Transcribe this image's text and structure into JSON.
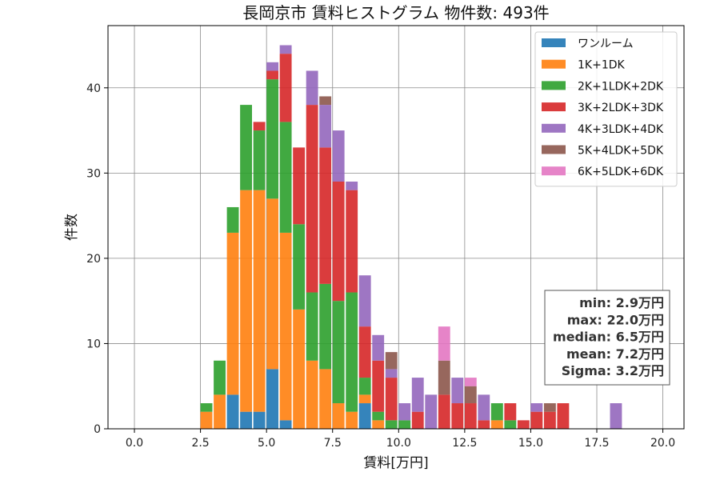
{
  "chart_data": {
    "type": "bar",
    "stacked": true,
    "title": "長岡京市 賃料ヒストグラム  物件数: 493件",
    "xlabel": "賃料[万円]",
    "ylabel": "件数",
    "xlim": [
      -1.0,
      20.8
    ],
    "ylim": [
      0,
      47.3
    ],
    "xticks": [
      0.0,
      2.5,
      5.0,
      7.5,
      10.0,
      12.5,
      15.0,
      17.5,
      20.0
    ],
    "xtick_labels": [
      "0.0",
      "2.5",
      "5.0",
      "7.5",
      "10.0",
      "12.5",
      "15.0",
      "17.5",
      "20.0"
    ],
    "yticks": [
      0,
      10,
      20,
      30,
      40
    ],
    "ytick_labels": [
      "0",
      "10",
      "20",
      "30",
      "40"
    ],
    "grid": true,
    "legend_position": "top-right",
    "bins": [
      2.5,
      3.0,
      3.5,
      4.0,
      4.5,
      5.0,
      5.5,
      6.0,
      6.5,
      7.0,
      7.5,
      8.0,
      8.5,
      9.0,
      9.5,
      10.0,
      10.5,
      11.0,
      11.5,
      12.0,
      12.5,
      13.0,
      13.5,
      14.0,
      14.5,
      15.0,
      15.5,
      16.0,
      18.0
    ],
    "series": [
      {
        "name": "ワンルーム",
        "color": "#1f77b4",
        "values": [
          0,
          0,
          4,
          2,
          2,
          7,
          1,
          0,
          0,
          0,
          0,
          0,
          3,
          0,
          0,
          0,
          0,
          0,
          0,
          0,
          0,
          0,
          0,
          0,
          0,
          0,
          0,
          0,
          0
        ]
      },
      {
        "name": "1K+1DK",
        "color": "#ff7f0e",
        "values": [
          2,
          4,
          19,
          26,
          26,
          20,
          22,
          14,
          8,
          7,
          3,
          2,
          1,
          1,
          0,
          0,
          0,
          0,
          0,
          0,
          0,
          0,
          1,
          0,
          0,
          0,
          0,
          0,
          0
        ]
      },
      {
        "name": "2K+1LDK+2DK",
        "color": "#2ca02c",
        "values": [
          1,
          4,
          3,
          10,
          7,
          14,
          13,
          10,
          8,
          10,
          12,
          14,
          2,
          1,
          1,
          1,
          0,
          0,
          0,
          0,
          0,
          0,
          2,
          1,
          0,
          0,
          0,
          0,
          0
        ]
      },
      {
        "name": "3K+2LDK+3DK",
        "color": "#d62728",
        "values": [
          0,
          0,
          0,
          0,
          1,
          1,
          8,
          9,
          22,
          16,
          14,
          12,
          6,
          6,
          5,
          0,
          2,
          0,
          4,
          3,
          3,
          1,
          0,
          2,
          1,
          2,
          2,
          3,
          0
        ]
      },
      {
        "name": "4K+3LDK+4DK",
        "color": "#9467bd",
        "values": [
          0,
          0,
          0,
          0,
          0,
          1,
          1,
          0,
          4,
          5,
          6,
          1,
          6,
          3,
          1,
          2,
          4,
          4,
          0,
          3,
          0,
          3,
          0,
          0,
          0,
          1,
          0,
          0,
          3
        ]
      },
      {
        "name": "5K+4LDK+5DK",
        "color": "#8c564b",
        "values": [
          0,
          0,
          0,
          0,
          0,
          0,
          0,
          0,
          0,
          1,
          0,
          0,
          0,
          0,
          2,
          0,
          0,
          0,
          4,
          0,
          2,
          0,
          0,
          0,
          0,
          0,
          1,
          0,
          0
        ]
      },
      {
        "name": "6K+5LDK+6DK",
        "color": "#e377c2",
        "values": [
          0,
          0,
          0,
          0,
          0,
          0,
          0,
          0,
          0,
          0,
          0,
          0,
          0,
          0,
          0,
          0,
          0,
          0,
          4,
          0,
          1,
          0,
          0,
          0,
          0,
          0,
          0,
          0,
          0
        ]
      }
    ],
    "stats_box": [
      "min: 2.9万円",
      "max: 22.0万円",
      "median: 6.5万円",
      "mean: 7.2万円",
      "Sigma: 3.2万円"
    ]
  }
}
